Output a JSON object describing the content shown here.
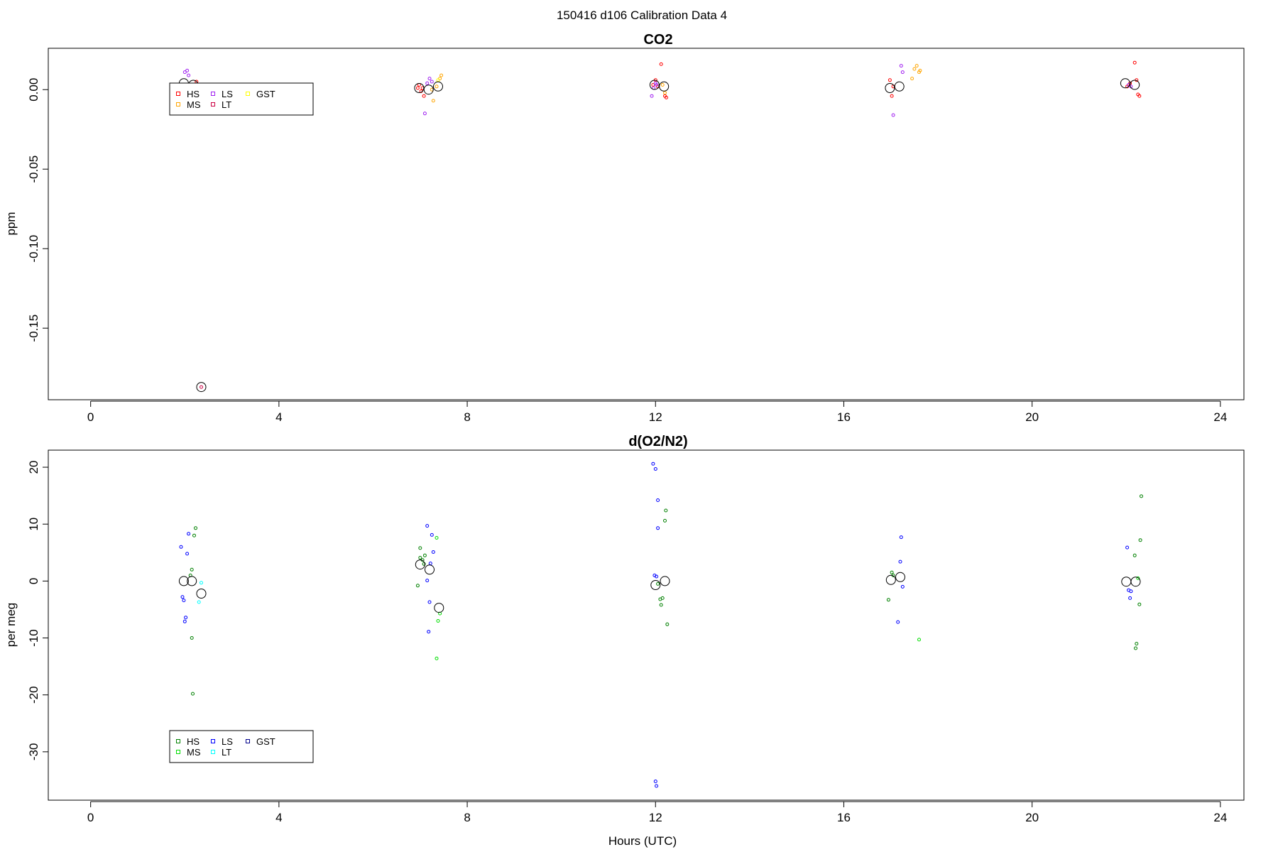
{
  "page_title": "150416   d106   Calibration Data 4",
  "chart_data": [
    {
      "type": "scatter",
      "title": "CO2",
      "xlabel": "",
      "ylabel": "ppm",
      "xlim": [
        -0.9,
        24.5
      ],
      "ylim": [
        -0.195,
        0.026
      ],
      "x_ticks": [
        0,
        4,
        8,
        12,
        16,
        20,
        24
      ],
      "y_ticks": [
        0.0,
        -0.05,
        -0.1,
        -0.15
      ],
      "y_tick_labels": [
        "0.00",
        "-0.05",
        "-0.10",
        "-0.15"
      ],
      "legend": {
        "placement": "top-left",
        "entries": [
          "HS",
          "MS",
          "LS",
          "LT",
          "GST"
        ]
      },
      "series": [
        {
          "name": "HS",
          "color": "#ff0000",
          "points": [
            [
              2.25,
              0.005
            ],
            [
              2.28,
              0.003
            ],
            [
              6.95,
              0.001
            ],
            [
              6.98,
              0.003
            ],
            [
              7.02,
              -0.001
            ],
            [
              7.05,
              0.001
            ],
            [
              7.08,
              -0.004
            ],
            [
              11.95,
              0.003
            ],
            [
              12.0,
              0.006
            ],
            [
              12.05,
              0.002
            ],
            [
              12.12,
              0.016
            ],
            [
              12.2,
              -0.004
            ],
            [
              12.23,
              -0.005
            ],
            [
              16.98,
              0.006
            ],
            [
              17.02,
              -0.004
            ],
            [
              17.05,
              0.002
            ],
            [
              22.02,
              0.002
            ],
            [
              22.08,
              0.004
            ],
            [
              22.18,
              0.017
            ],
            [
              22.22,
              0.006
            ],
            [
              22.25,
              -0.003
            ],
            [
              22.28,
              -0.004
            ]
          ]
        },
        {
          "name": "MS",
          "color": "#ffa500",
          "points": [
            [
              7.25,
              0.0
            ],
            [
              7.28,
              -0.007
            ],
            [
              7.35,
              0.002
            ],
            [
              7.42,
              0.007
            ],
            [
              7.45,
              0.009
            ],
            [
              12.15,
              0.003
            ],
            [
              12.2,
              -0.002
            ],
            [
              17.45,
              0.007
            ],
            [
              17.5,
              0.013
            ],
            [
              17.55,
              0.015
            ],
            [
              17.6,
              0.011
            ],
            [
              17.62,
              0.012
            ]
          ]
        },
        {
          "name": "LS",
          "color": "#a020f0",
          "points": [
            [
              2.0,
              0.011
            ],
            [
              2.05,
              0.012
            ],
            [
              2.08,
              0.009
            ],
            [
              2.18,
              0.001
            ],
            [
              7.1,
              -0.015
            ],
            [
              7.2,
              0.007
            ],
            [
              7.25,
              0.005
            ],
            [
              7.15,
              0.004
            ],
            [
              11.92,
              -0.004
            ],
            [
              11.96,
              0.001
            ],
            [
              12.0,
              0.004
            ],
            [
              12.02,
              0.003
            ],
            [
              17.05,
              -0.016
            ],
            [
              17.22,
              0.015
            ],
            [
              17.25,
              0.011
            ],
            [
              22.05,
              0.003
            ],
            [
              22.1,
              0.002
            ]
          ]
        },
        {
          "name": "LT",
          "color": "#cc0044",
          "points": [
            [
              2.35,
              -0.187
            ],
            [
              2.3,
              0.001
            ]
          ]
        },
        {
          "name": "GST",
          "color": "#ffff00",
          "points": [
            [
              7.38,
              0.006
            ]
          ]
        },
        {
          "name": "",
          "color": "#000000",
          "kind": "mean",
          "points": [
            [
              1.98,
              0.004
            ],
            [
              2.18,
              0.003
            ],
            [
              2.35,
              -0.187
            ],
            [
              6.98,
              0.001
            ],
            [
              7.18,
              0.0
            ],
            [
              7.38,
              0.002
            ],
            [
              11.98,
              0.003
            ],
            [
              12.18,
              0.002
            ],
            [
              16.98,
              0.001
            ],
            [
              17.18,
              0.002
            ],
            [
              21.98,
              0.004
            ],
            [
              22.18,
              0.003
            ]
          ]
        }
      ]
    },
    {
      "type": "scatter",
      "title": "d(O2/N2)",
      "xlabel": "Hours (UTC)",
      "ylabel": "per meg",
      "xlim": [
        -0.9,
        24.5
      ],
      "ylim": [
        -38.5,
        23
      ],
      "x_ticks": [
        0,
        4,
        8,
        12,
        16,
        20,
        24
      ],
      "y_ticks": [
        20,
        10,
        0,
        -10,
        -20,
        -30
      ],
      "y_tick_labels": [
        "20",
        "10",
        "0",
        "-10",
        "-20",
        "-30"
      ],
      "legend": {
        "placement": "bottom-left",
        "entries": [
          "HS",
          "MS",
          "LS",
          "LT",
          "GST"
        ]
      },
      "series": [
        {
          "name": "HS",
          "color": "#008000",
          "points": [
            [
              2.15,
              2.0
            ],
            [
              2.12,
              1.0
            ],
            [
              2.2,
              8.0
            ],
            [
              2.23,
              9.3
            ],
            [
              2.15,
              -10.0
            ],
            [
              2.17,
              -19.8
            ],
            [
              6.95,
              -0.8
            ],
            [
              7.0,
              5.8
            ],
            [
              7.0,
              4.1
            ],
            [
              7.05,
              3.7
            ],
            [
              7.08,
              3.0
            ],
            [
              7.1,
              4.5
            ],
            [
              12.05,
              -0.5
            ],
            [
              12.1,
              -3.2
            ],
            [
              12.15,
              -3.0
            ],
            [
              12.12,
              -4.2
            ],
            [
              12.2,
              10.6
            ],
            [
              12.22,
              12.4
            ],
            [
              12.25,
              -7.6
            ],
            [
              16.95,
              -3.3
            ],
            [
              17.02,
              1.5
            ],
            [
              17.05,
              1.0
            ],
            [
              22.18,
              4.5
            ],
            [
              22.22,
              -11.0
            ],
            [
              22.2,
              -11.8
            ],
            [
              22.28,
              -4.1
            ],
            [
              22.3,
              7.2
            ],
            [
              22.32,
              14.9
            ]
          ]
        },
        {
          "name": "MS",
          "color": "#00dd00",
          "points": [
            [
              7.35,
              7.6
            ],
            [
              7.38,
              -7.0
            ],
            [
              7.42,
              -5.7
            ],
            [
              7.35,
              -13.6
            ],
            [
              17.6,
              -10.3
            ],
            [
              22.25,
              0.5
            ]
          ]
        },
        {
          "name": "LS",
          "color": "#0000ff",
          "points": [
            [
              1.92,
              6.0
            ],
            [
              1.95,
              -2.8
            ],
            [
              1.98,
              -3.4
            ],
            [
              2.0,
              -7.1
            ],
            [
              2.02,
              -6.4
            ],
            [
              2.05,
              4.8
            ],
            [
              2.08,
              8.3
            ],
            [
              7.15,
              0.1
            ],
            [
              7.2,
              -3.7
            ],
            [
              7.18,
              -8.9
            ],
            [
              7.15,
              9.7
            ],
            [
              7.25,
              8.1
            ],
            [
              7.28,
              5.1
            ],
            [
              7.22,
              3.1
            ],
            [
              11.95,
              20.6
            ],
            [
              12.0,
              19.7
            ],
            [
              12.05,
              14.2
            ],
            [
              12.05,
              9.3
            ],
            [
              12.02,
              0.8
            ],
            [
              11.98,
              1.0
            ],
            [
              12.0,
              -35.2
            ],
            [
              12.02,
              -36.0
            ],
            [
              17.15,
              -7.2
            ],
            [
              17.2,
              3.4
            ],
            [
              17.22,
              7.7
            ],
            [
              17.25,
              -1.0
            ],
            [
              22.02,
              5.9
            ],
            [
              22.05,
              -1.6
            ],
            [
              22.1,
              -1.8
            ],
            [
              22.08,
              -3.0
            ]
          ]
        },
        {
          "name": "LT",
          "color": "#00ffff",
          "points": [
            [
              2.3,
              -3.7
            ],
            [
              2.35,
              -0.3
            ]
          ]
        },
        {
          "name": "GST",
          "color": "#00008b",
          "points": []
        },
        {
          "name": "",
          "color": "#000000",
          "kind": "mean",
          "points": [
            [
              1.98,
              0.0
            ],
            [
              2.15,
              0.0
            ],
            [
              2.35,
              -2.2
            ],
            [
              7.0,
              2.9
            ],
            [
              7.2,
              2.0
            ],
            [
              7.4,
              -4.7
            ],
            [
              12.0,
              -0.7
            ],
            [
              12.2,
              0.0
            ],
            [
              17.0,
              0.2
            ],
            [
              17.2,
              0.7
            ],
            [
              22.0,
              -0.1
            ],
            [
              22.2,
              -0.1
            ]
          ]
        }
      ]
    }
  ]
}
